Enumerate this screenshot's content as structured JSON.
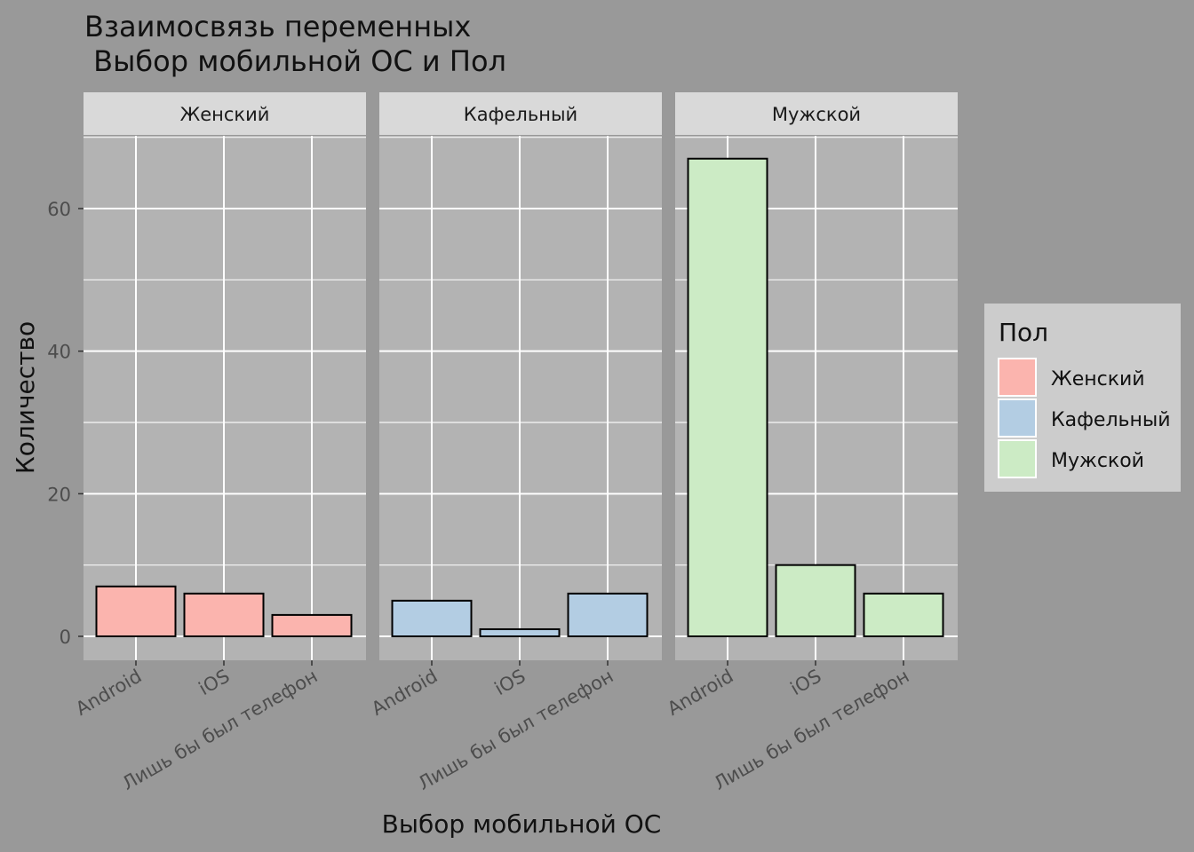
{
  "chart_data": {
    "type": "bar",
    "title_lines": [
      "Взаимосвязь переменных",
      " Выбор мобильной ОС и Пол"
    ],
    "xlabel": "Выбор мобильной ОС",
    "ylabel": "Количество",
    "categories": [
      "Android",
      "iOS",
      "Лишь бы был телефон"
    ],
    "ylim": [
      0,
      70
    ],
    "yticks": [
      0,
      20,
      40,
      60
    ],
    "grid": true,
    "legend": {
      "title": "Пол",
      "position": "right",
      "items": [
        {
          "label": "Женский",
          "color": "#FBB4AE"
        },
        {
          "label": "Кафельный",
          "color": "#B3CDE3"
        },
        {
          "label": "Мужской",
          "color": "#CCEBC5"
        }
      ]
    },
    "facets": [
      {
        "name": "Женский",
        "color": "#FBB4AE",
        "values": [
          7,
          6,
          3
        ]
      },
      {
        "name": "Кафельный",
        "color": "#B3CDE3",
        "values": [
          5,
          1,
          6
        ]
      },
      {
        "name": "Мужской",
        "color": "#CCEBC5",
        "values": [
          67,
          10,
          6
        ]
      }
    ]
  }
}
